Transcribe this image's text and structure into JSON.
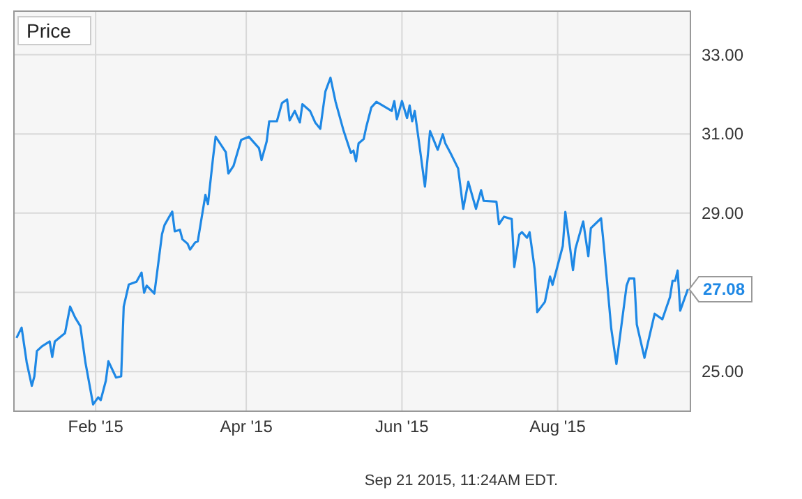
{
  "chart_data": {
    "type": "line",
    "title": "Price",
    "x": [
      "2015-01-01",
      "2015-01-03",
      "2015-01-05",
      "2015-01-07",
      "2015-01-08",
      "2015-01-09",
      "2015-01-11",
      "2015-01-14",
      "2015-01-15",
      "2015-01-16",
      "2015-01-20",
      "2015-01-22",
      "2015-01-24",
      "2015-01-26",
      "2015-01-28",
      "2015-01-29",
      "2015-01-31",
      "2015-02-02",
      "2015-02-03",
      "2015-02-05",
      "2015-02-06",
      "2015-02-09",
      "2015-02-11",
      "2015-02-12",
      "2015-02-14",
      "2015-02-17",
      "2015-02-19",
      "2015-02-20",
      "2015-02-21",
      "2015-02-24",
      "2015-02-25",
      "2015-02-27",
      "2015-02-28",
      "2015-03-03",
      "2015-03-04",
      "2015-03-06",
      "2015-03-07",
      "2015-03-09",
      "2015-03-10",
      "2015-03-12",
      "2015-03-13",
      "2015-03-16",
      "2015-03-17",
      "2015-03-19",
      "2015-03-20",
      "2015-03-24",
      "2015-03-25",
      "2015-03-27",
      "2015-03-30",
      "2015-04-02",
      "2015-04-06",
      "2015-04-07",
      "2015-04-09",
      "2015-04-10",
      "2015-04-13",
      "2015-04-15",
      "2015-04-17",
      "2015-04-18",
      "2015-04-20",
      "2015-04-22",
      "2015-04-23",
      "2015-04-26",
      "2015-04-28",
      "2015-04-30",
      "2015-05-02",
      "2015-05-04",
      "2015-05-06",
      "2015-05-09",
      "2015-05-12",
      "2015-05-13",
      "2015-05-14",
      "2015-05-15",
      "2015-05-17",
      "2015-05-18",
      "2015-05-20",
      "2015-05-22",
      "2015-05-28",
      "2015-05-29",
      "2015-05-30",
      "2015-06-01",
      "2015-06-03",
      "2015-06-04",
      "2015-06-05",
      "2015-06-06",
      "2015-06-08",
      "2015-06-10",
      "2015-06-12",
      "2015-06-15",
      "2015-06-17",
      "2015-06-18",
      "2015-06-20",
      "2015-06-23",
      "2015-06-25",
      "2015-06-27",
      "2015-06-30",
      "2015-07-02",
      "2015-07-03",
      "2015-07-08",
      "2015-07-09",
      "2015-07-11",
      "2015-07-14",
      "2015-07-15",
      "2015-07-17",
      "2015-07-18",
      "2015-07-20",
      "2015-07-21",
      "2015-07-23",
      "2015-07-24",
      "2015-07-27",
      "2015-07-29",
      "2015-07-30",
      "2015-08-03",
      "2015-08-04",
      "2015-08-07",
      "2015-08-08",
      "2015-08-11",
      "2015-08-13",
      "2015-08-14",
      "2015-08-18",
      "2015-08-19",
      "2015-08-22",
      "2015-08-24",
      "2015-08-28",
      "2015-08-29",
      "2015-08-31",
      "2015-09-01",
      "2015-09-04",
      "2015-09-08",
      "2015-09-11",
      "2015-09-14",
      "2015-09-15",
      "2015-09-16",
      "2015-09-17",
      "2015-09-18",
      "2015-09-21"
    ],
    "series": [
      {
        "color": "#1e88e5",
        "values": [
          25.85,
          26.11,
          25.23,
          24.64,
          24.88,
          25.52,
          25.64,
          25.76,
          25.37,
          25.76,
          25.97,
          26.64,
          26.36,
          26.15,
          25.23,
          24.88,
          24.17,
          24.35,
          24.28,
          24.77,
          25.26,
          24.85,
          24.88,
          26.64,
          27.2,
          27.27,
          27.5,
          26.99,
          27.17,
          26.97,
          27.46,
          28.47,
          28.7,
          29.04,
          28.54,
          28.58,
          28.34,
          28.23,
          28.08,
          28.26,
          28.29,
          29.46,
          29.23,
          30.4,
          30.93,
          30.54,
          30.0,
          30.19,
          30.85,
          30.93,
          30.64,
          30.34,
          30.81,
          31.32,
          31.32,
          31.78,
          31.87,
          31.34,
          31.58,
          31.29,
          31.75,
          31.58,
          31.29,
          31.13,
          32.07,
          32.42,
          31.81,
          31.11,
          30.52,
          30.58,
          30.31,
          30.76,
          30.87,
          31.17,
          31.67,
          31.81,
          31.58,
          31.83,
          31.37,
          31.83,
          31.4,
          31.72,
          31.32,
          31.58,
          30.64,
          29.67,
          31.07,
          30.6,
          30.99,
          30.76,
          30.52,
          30.13,
          29.11,
          29.79,
          29.11,
          29.58,
          29.31,
          29.29,
          28.72,
          28.91,
          28.85,
          27.64,
          28.46,
          28.52,
          28.38,
          28.52,
          27.58,
          26.5,
          26.76,
          27.4,
          27.19,
          28.17,
          29.03,
          27.56,
          28.11,
          28.79,
          27.91,
          28.62,
          28.87,
          28.23,
          26.08,
          25.19,
          27.17,
          27.35,
          27.35,
          26.19,
          25.35,
          26.46,
          26.32,
          26.88,
          27.29,
          27.29,
          27.55,
          26.54,
          27.08
        ]
      }
    ],
    "xlim": [
      "2014-12-31",
      "2015-09-22"
    ],
    "xticks": [
      {
        "value": "2015-02-01",
        "label": "Feb '15"
      },
      {
        "value": "2015-04-01",
        "label": "Apr '15"
      },
      {
        "value": "2015-06-01",
        "label": "Jun '15"
      },
      {
        "value": "2015-08-01",
        "label": "Aug '15"
      }
    ],
    "ylim": [
      24,
      34.1
    ],
    "yticks": [
      {
        "value": 25,
        "label": "25.00"
      },
      {
        "value": 27,
        "label": null
      },
      {
        "value": 29,
        "label": "29.00"
      },
      {
        "value": 31,
        "label": "31.00"
      },
      {
        "value": 33,
        "label": "33.00"
      }
    ],
    "grid": true,
    "annotations": [
      {
        "text": "27.08",
        "x": "2015-09-21",
        "y": 27.08
      },
      "Sep 21 2015, 11:24AM EDT."
    ]
  }
}
